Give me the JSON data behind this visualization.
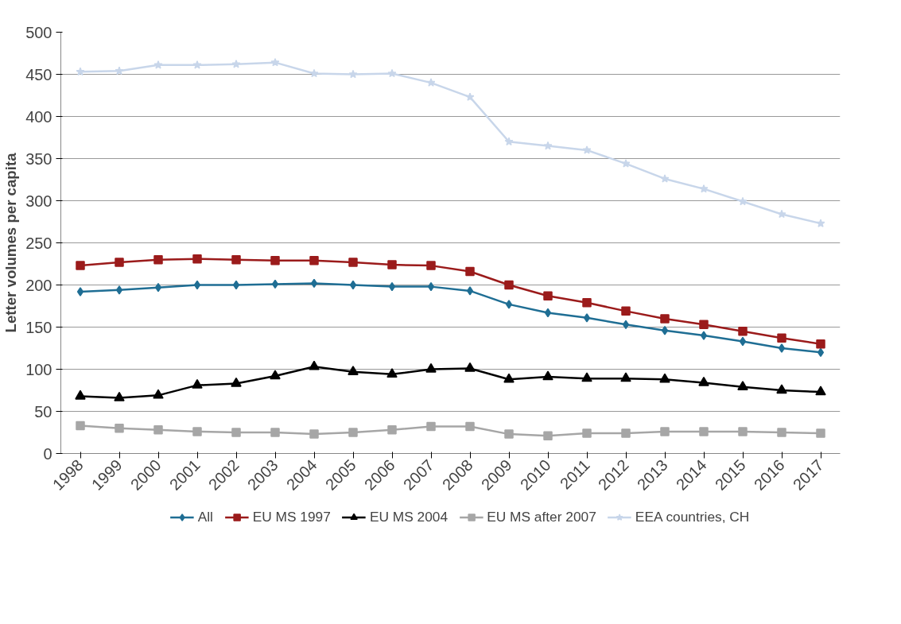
{
  "chart_data": {
    "type": "line",
    "ylabel": "Letter volumes per capita",
    "categories": [
      "1998",
      "1999",
      "2000",
      "2001",
      "2002",
      "2003",
      "2004",
      "2005",
      "2006",
      "2007",
      "2008",
      "2009",
      "2010",
      "2011",
      "2012",
      "2013",
      "2014",
      "2015",
      "2016",
      "2017"
    ],
    "ylim": [
      0,
      500
    ],
    "yticks": [
      0,
      50,
      100,
      150,
      200,
      250,
      300,
      350,
      400,
      450,
      500
    ],
    "grid": "y",
    "legend": "bottom",
    "series": [
      {
        "name": "All",
        "color": "#1f6e94",
        "marker": "diamond",
        "values": [
          192,
          194,
          197,
          200,
          200,
          201,
          202,
          200,
          198,
          198,
          193,
          177,
          167,
          161,
          153,
          146,
          140,
          133,
          125,
          120
        ]
      },
      {
        "name": "EU MS 1997",
        "color": "#9b1b1b",
        "marker": "square",
        "values": [
          223,
          227,
          230,
          231,
          230,
          229,
          229,
          227,
          224,
          223,
          216,
          200,
          187,
          179,
          169,
          160,
          153,
          145,
          137,
          130
        ]
      },
      {
        "name": "EU MS 2004",
        "color": "#000000",
        "marker": "triangle",
        "values": [
          68,
          66,
          69,
          81,
          83,
          92,
          103,
          97,
          94,
          100,
          101,
          88,
          91,
          89,
          89,
          88,
          84,
          79,
          75,
          73
        ]
      },
      {
        "name": "EU MS after 2007",
        "color": "#a6a6a6",
        "marker": "square",
        "values": [
          33,
          30,
          28,
          26,
          25,
          25,
          23,
          25,
          28,
          32,
          32,
          23,
          21,
          24,
          24,
          26,
          26,
          26,
          25,
          24
        ]
      },
      {
        "name": "EEA countries, CH",
        "color": "#c8d6ea",
        "marker": "star",
        "values": [
          453,
          454,
          461,
          461,
          462,
          464,
          451,
          450,
          451,
          440,
          423,
          370,
          365,
          360,
          344,
          326,
          314,
          299,
          284,
          273
        ]
      }
    ]
  }
}
